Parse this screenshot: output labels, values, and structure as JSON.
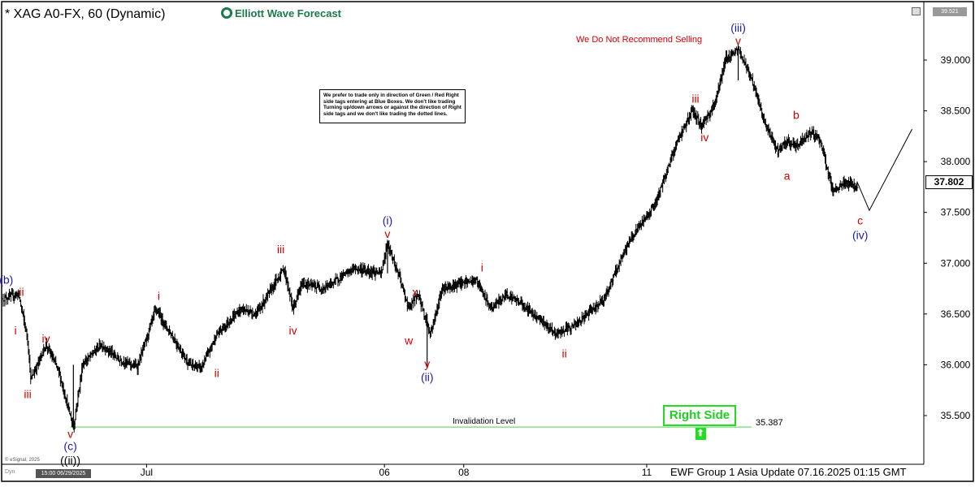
{
  "header": {
    "symbol_title": "* XAG A0-FX, 60 (Dynamic)",
    "logo_text": "Elliott Wave Forecast",
    "top_right_value": "39.521"
  },
  "warning_text": "We Do Not Recommend Selling",
  "note_text": "We prefer to trade only in direction of Green / Red Right side tags entering at Blue Boxes. We don't like trading Turning up/down arrows or against the direction of Right side tags and we don't like trading the dotted lines.",
  "right_side": {
    "label": "Right Side",
    "arrow": "⬆"
  },
  "invalidation": {
    "label": "Invalidation Level",
    "value": "35.387"
  },
  "last_price": "37.802",
  "footer": {
    "update_text": "EWF Group 1 Asia Update 07.16.2025 01:15 GMT",
    "esignal": "© eSignal, 2025",
    "date_box": "15:00 06/29/2025",
    "corner_label": "Dyn"
  },
  "colors": {
    "red_label": "#d40000",
    "blue_label": "#1a1aa8",
    "green": "#22dd22",
    "bars": "#000000"
  },
  "chart_data": {
    "type": "ohlc",
    "symbol": "XAG A0-FX",
    "interval": "60",
    "ylim": [
      35.1,
      39.45
    ],
    "yticks": [
      35.5,
      36.0,
      36.5,
      37.0,
      37.5,
      38.0,
      38.5,
      39.0
    ],
    "ytick_labels": [
      "35.500",
      "36.000",
      "36.500",
      "37.000",
      "37.500",
      "38.000",
      "38.500",
      "39.000"
    ],
    "x_range_bars": [
      0,
      300
    ],
    "xticks": [
      {
        "bar": 47,
        "label": "Jul"
      },
      {
        "bar": 125,
        "label": "06"
      },
      {
        "bar": 151,
        "label": "08"
      },
      {
        "bar": 211,
        "label": "11"
      }
    ],
    "price_path": [
      [
        0,
        36.65
      ],
      [
        5,
        36.7
      ],
      [
        8,
        36.25
      ],
      [
        9,
        35.85
      ],
      [
        14,
        36.2
      ],
      [
        18,
        35.95
      ],
      [
        23,
        35.38
      ],
      [
        26,
        36.0
      ],
      [
        32,
        36.2
      ],
      [
        38,
        36.05
      ],
      [
        44,
        35.98
      ],
      [
        50,
        36.55
      ],
      [
        55,
        36.3
      ],
      [
        61,
        36.0
      ],
      [
        65,
        35.97
      ],
      [
        70,
        36.3
      ],
      [
        78,
        36.55
      ],
      [
        83,
        36.5
      ],
      [
        92,
        36.95
      ],
      [
        95,
        36.55
      ],
      [
        98,
        36.8
      ],
      [
        105,
        36.75
      ],
      [
        115,
        36.95
      ],
      [
        124,
        36.9
      ],
      [
        126,
        37.2
      ],
      [
        130,
        36.85
      ],
      [
        133,
        36.55
      ],
      [
        136,
        36.7
      ],
      [
        140,
        36.3
      ],
      [
        144,
        36.75
      ],
      [
        150,
        36.8
      ],
      [
        155,
        36.83
      ],
      [
        160,
        36.55
      ],
      [
        165,
        36.7
      ],
      [
        170,
        36.6
      ],
      [
        176,
        36.45
      ],
      [
        181,
        36.3
      ],
      [
        188,
        36.4
      ],
      [
        197,
        36.65
      ],
      [
        205,
        37.2
      ],
      [
        214,
        37.6
      ],
      [
        221,
        38.2
      ],
      [
        226,
        38.5
      ],
      [
        229,
        38.35
      ],
      [
        233,
        38.55
      ],
      [
        237,
        39.02
      ],
      [
        241,
        39.1
      ],
      [
        245,
        38.85
      ],
      [
        250,
        38.35
      ],
      [
        254,
        38.1
      ],
      [
        257,
        38.2
      ],
      [
        260,
        38.15
      ],
      [
        265,
        38.3
      ],
      [
        268,
        38.2
      ],
      [
        272,
        37.7
      ],
      [
        276,
        37.8
      ],
      [
        280,
        37.75
      ]
    ],
    "projection": [
      [
        280,
        37.8
      ],
      [
        284,
        37.52
      ],
      [
        298,
        38.32
      ]
    ],
    "invalidation_level": 35.387,
    "wave_labels": [
      {
        "text": "(b)",
        "bar": 1,
        "price": 36.8,
        "color": "blue"
      },
      {
        "text": "ii",
        "bar": 6,
        "price": 36.68,
        "color": "red"
      },
      {
        "text": "i",
        "bar": 4,
        "price": 36.3,
        "color": "red"
      },
      {
        "text": "iii",
        "bar": 8,
        "price": 35.67,
        "color": "red"
      },
      {
        "text": "iv",
        "bar": 14,
        "price": 36.22,
        "color": "red"
      },
      {
        "text": "v",
        "bar": 22,
        "price": 35.28,
        "color": "red"
      },
      {
        "text": "(c)",
        "bar": 22,
        "price": 35.16,
        "color": "blue"
      },
      {
        "text": "((ii))",
        "bar": 22,
        "price": 35.02,
        "color": "black"
      },
      {
        "text": "i",
        "bar": 51,
        "price": 36.64,
        "color": "red"
      },
      {
        "text": "ii",
        "bar": 70,
        "price": 35.88,
        "color": "red"
      },
      {
        "text": "iii",
        "bar": 91,
        "price": 37.1,
        "color": "red"
      },
      {
        "text": "iv",
        "bar": 95,
        "price": 36.3,
        "color": "red"
      },
      {
        "text": "(i)",
        "bar": 126,
        "price": 37.38,
        "color": "blue"
      },
      {
        "text": "v",
        "bar": 126,
        "price": 37.25,
        "color": "red"
      },
      {
        "text": "x",
        "bar": 135,
        "price": 36.68,
        "color": "red"
      },
      {
        "text": "w",
        "bar": 133,
        "price": 36.2,
        "color": "red"
      },
      {
        "text": "y",
        "bar": 139,
        "price": 35.97,
        "color": "red"
      },
      {
        "text": "(ii)",
        "bar": 139,
        "price": 35.84,
        "color": "blue"
      },
      {
        "text": "i",
        "bar": 157,
        "price": 36.92,
        "color": "red"
      },
      {
        "text": "ii",
        "bar": 184,
        "price": 36.07,
        "color": "red"
      },
      {
        "text": "iii",
        "bar": 227,
        "price": 38.58,
        "color": "red"
      },
      {
        "text": "iv",
        "bar": 230,
        "price": 38.2,
        "color": "red"
      },
      {
        "text": "(iii)",
        "bar": 241,
        "price": 39.28,
        "color": "blue"
      },
      {
        "text": "v",
        "bar": 241,
        "price": 39.15,
        "color": "red"
      },
      {
        "text": "b",
        "bar": 260,
        "price": 38.42,
        "color": "red"
      },
      {
        "text": "a",
        "bar": 257,
        "price": 37.82,
        "color": "red"
      },
      {
        "text": "c",
        "bar": 281,
        "price": 37.38,
        "color": "red"
      },
      {
        "text": "(iv)",
        "bar": 281,
        "price": 37.24,
        "color": "blue"
      }
    ]
  }
}
